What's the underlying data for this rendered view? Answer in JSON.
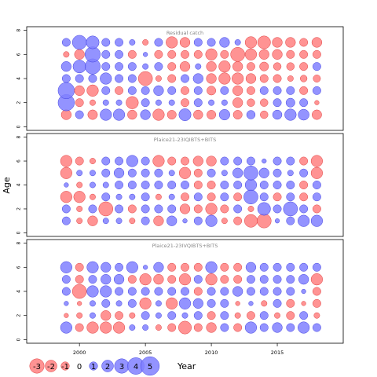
{
  "colors": {
    "negative_fill": "#ff8080",
    "positive_fill": "#8080ff",
    "negative_stroke": "#e04040",
    "positive_stroke": "#4040e0",
    "frame": "#000000",
    "panel_title": "#888888"
  },
  "legend_label": "Year",
  "y_axis_label": "Age",
  "chart_data": [
    {
      "type": "bubble",
      "title": "Residual catch",
      "x": [
        1999,
        2000,
        2001,
        2002,
        2003,
        2004,
        2005,
        2006,
        2007,
        2008,
        2009,
        2010,
        2011,
        2012,
        2013,
        2014,
        2015,
        2016,
        2017,
        2018
      ],
      "x_ticks": [
        2000,
        2005,
        2010,
        2015
      ],
      "y": [
        1,
        2,
        3,
        4,
        5,
        6,
        7
      ],
      "y_ticks": [
        0,
        2,
        4,
        6,
        8
      ],
      "xlim": [
        1996,
        2020
      ],
      "ylim": [
        -0.3,
        8.3
      ],
      "values": [
        [
          -1.5,
          1.0,
          -1.4,
          2.0,
          2.0,
          -1.3,
          1.5,
          -2.0,
          -1.2,
          2.2,
          -1.3,
          -1.2,
          1.7,
          -1.2,
          1.1,
          -0.9,
          1.3,
          2.0,
          1.8,
          -1.4
        ],
        [
          4.0,
          -1.0,
          -0.5,
          0.5,
          0.5,
          -2.3,
          1.0,
          0.5,
          0.5,
          -1.0,
          1.0,
          0.5,
          0.5,
          -1.5,
          -0.9,
          -0.9,
          1.0,
          1.2,
          1.0,
          -0.3
        ],
        [
          4.0,
          -1.5,
          -2.0,
          1.0,
          -1.0,
          1.0,
          1.0,
          1.5,
          1.0,
          -1.0,
          1.0,
          -1.2,
          1.0,
          -1.5,
          -1.0,
          1.0,
          1.0,
          1.0,
          -1.0,
          1.0
        ],
        [
          1.0,
          1.0,
          1.0,
          2.0,
          1.0,
          1.0,
          -3.0,
          -0.5,
          -1.0,
          1.0,
          1.5,
          -1.5,
          -2.0,
          -2.0,
          -1.5,
          -1.0,
          -1.0,
          -0.5,
          -0.7,
          -0.8
        ],
        [
          1.5,
          2.5,
          3.5,
          1.0,
          1.0,
          1.0,
          0.5,
          1.0,
          -1.0,
          -1.5,
          0.5,
          -1.5,
          -2.0,
          -1.5,
          -1.0,
          -1.2,
          -0.9,
          -0.9,
          -1.0,
          1.0
        ],
        [
          -0.5,
          -1.5,
          3.5,
          1.0,
          1.0,
          -1.0,
          0.3,
          -1.0,
          -1.0,
          -1.0,
          -1.0,
          -2.0,
          -1.0,
          -3.0,
          -2.0,
          -1.5,
          -1.5,
          -1.0,
          -1.0,
          -1.0
        ],
        [
          1.0,
          3.0,
          2.5,
          1.0,
          1.0,
          0.5,
          -0.5,
          1.0,
          -2.0,
          -1.5,
          1.0,
          1.0,
          1.5,
          0.5,
          -2.0,
          -2.5,
          -1.5,
          -1.5,
          -1.0,
          -1.5
        ]
      ]
    },
    {
      "type": "bubble",
      "title": "Plaice21-23IQIBTS+BITS",
      "x": [
        1999,
        2000,
        2001,
        2002,
        2003,
        2004,
        2005,
        2006,
        2007,
        2008,
        2009,
        2010,
        2011,
        2012,
        2013,
        2014,
        2015,
        2016,
        2017,
        2018
      ],
      "x_ticks": [
        2000,
        2005,
        2010,
        2015
      ],
      "y": [
        1,
        2,
        3,
        4,
        5,
        6
      ],
      "y_ticks": [
        0,
        2,
        4,
        6,
        8
      ],
      "xlim": [
        1996,
        2020
      ],
      "ylim": [
        -0.3,
        8.3
      ],
      "values": [
        [
          1.0,
          -0.5,
          -1.5,
          0.5,
          0.5,
          -0.5,
          1.0,
          -1.5,
          1.5,
          0.3,
          1.0,
          2.0,
          -0.5,
          -1.0,
          -2.5,
          -3.0,
          0.3,
          1.0,
          2.0,
          2.0
        ],
        [
          1.0,
          -0.5,
          1.0,
          -3.0,
          1.0,
          -1.0,
          1.0,
          1.0,
          1.0,
          -1.5,
          -1.0,
          -2.0,
          -1.0,
          1.0,
          -0.5,
          2.5,
          1.0,
          3.0,
          1.0,
          -1.0
        ],
        [
          -2.0,
          -2.0,
          -0.5,
          1.0,
          0.5,
          0.5,
          1.0,
          -0.5,
          0.5,
          -1.0,
          1.0,
          -1.0,
          1.0,
          -1.0,
          3.0,
          1.0,
          -1.0,
          1.0,
          -1.0,
          1.0
        ],
        [
          0.3,
          -0.5,
          0.5,
          0.5,
          1.0,
          1.0,
          1.0,
          1.0,
          1.0,
          1.0,
          -1.0,
          -1.0,
          1.0,
          1.0,
          2.0,
          1.0,
          1.0,
          1.0,
          -1.0,
          1.0
        ],
        [
          -2.0,
          0.5,
          0.5,
          1.0,
          1.5,
          1.0,
          1.0,
          1.0,
          0.5,
          -2.0,
          -1.0,
          1.0,
          0.5,
          1.5,
          3.0,
          1.5,
          1.0,
          0.5,
          1.0,
          -2.0
        ],
        [
          -2.0,
          -1.0,
          -0.5,
          1.0,
          1.0,
          2.0,
          1.0,
          -2.0,
          -1.0,
          -1.0,
          -1.5,
          -1.5,
          1.0,
          1.0,
          1.0,
          0.3,
          1.0,
          1.0,
          -1.0,
          -2.0
        ]
      ]
    },
    {
      "type": "bubble",
      "title": "Plaice21-23IVQIBTS+BITS",
      "x": [
        1999,
        2000,
        2001,
        2002,
        2003,
        2004,
        2005,
        2006,
        2007,
        2008,
        2009,
        2010,
        2011,
        2012,
        2013,
        2014,
        2015,
        2016,
        2017,
        2018
      ],
      "x_ticks": [
        2000,
        2005,
        2010,
        2015
      ],
      "y": [
        1,
        2,
        3,
        4,
        5,
        6
      ],
      "y_ticks": [
        0,
        2,
        4,
        6,
        8
      ],
      "xlim": [
        1996,
        2020
      ],
      "ylim": [
        -0.3,
        8.3
      ],
      "values": [
        [
          2.0,
          -1.0,
          -2.0,
          -2.0,
          -2.0,
          0.5,
          0.5,
          -0.5,
          -1.0,
          -2.5,
          -1.0,
          -1.5,
          1.0,
          -1.0,
          2.0,
          1.0,
          1.5,
          1.0,
          2.0,
          1.0
        ],
        [
          -0.3,
          -0.5,
          0.5,
          -1.5,
          -1.0,
          -0.5,
          1.0,
          0.5,
          1.0,
          0.5,
          1.0,
          -1.0,
          1.0,
          -0.5,
          -1.0,
          1.0,
          -0.5,
          -1.0,
          1.0,
          -0.5
        ],
        [
          0.3,
          -0.3,
          0.5,
          1.0,
          0.5,
          1.0,
          -2.0,
          0.5,
          -2.0,
          2.0,
          1.5,
          1.0,
          1.0,
          -0.3,
          0.3,
          -0.5,
          1.0,
          -1.0,
          -0.3,
          -1.0
        ],
        [
          1.0,
          -3.0,
          2.0,
          2.0,
          1.0,
          1.0,
          1.0,
          1.0,
          1.0,
          1.0,
          -1.0,
          1.0,
          1.0,
          1.5,
          1.0,
          1.0,
          1.0,
          1.0,
          0.3,
          -1.0
        ],
        [
          1.0,
          -1.0,
          1.0,
          1.5,
          1.5,
          -1.0,
          -2.0,
          -1.5,
          -1.0,
          -2.0,
          1.0,
          -2.0,
          -1.0,
          -1.0,
          1.0,
          1.0,
          1.0,
          1.0,
          1.5,
          -2.0
        ],
        [
          2.0,
          -1.0,
          2.0,
          1.5,
          1.0,
          2.0,
          0.3,
          1.5,
          -1.0,
          -1.0,
          -1.0,
          2.0,
          -1.0,
          -1.0,
          1.5,
          1.0,
          1.0,
          1.0,
          1.0,
          1.0
        ]
      ]
    }
  ],
  "legend": [
    {
      "label": "-3",
      "value": -3
    },
    {
      "label": "-2",
      "value": -2
    },
    {
      "label": "-1",
      "value": -1
    },
    {
      "label": "0",
      "value": 0
    },
    {
      "label": "1",
      "value": 1
    },
    {
      "label": "2",
      "value": 2
    },
    {
      "label": "3",
      "value": 3
    },
    {
      "label": "4",
      "value": 4
    },
    {
      "label": "5",
      "value": 5
    }
  ]
}
